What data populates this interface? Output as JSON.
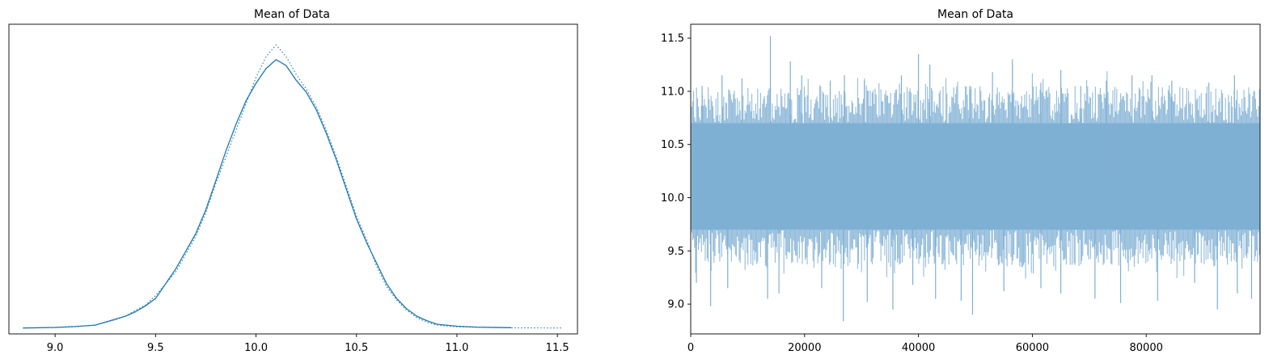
{
  "colors": {
    "line": "#1f77b4",
    "trace_fill": "#7fb0d4",
    "frame": "#000000",
    "background": "#ffffff"
  },
  "chart_data": [
    {
      "type": "line",
      "title": "Mean of Data",
      "xlabel": "",
      "ylabel": "",
      "xlim": [
        8.77,
        11.6
      ],
      "ylim": [
        -0.02,
        1.03
      ],
      "x_ticks": [
        "9.0",
        "9.5",
        "10.0",
        "10.5",
        "11.0",
        "11.5"
      ],
      "x_tick_values": [
        9.0,
        9.5,
        10.0,
        10.5,
        11.0,
        11.5
      ],
      "y_ticks": [],
      "grid": false,
      "legend": "none",
      "series": [
        {
          "style": "solid",
          "x": [
            8.84,
            9.0,
            9.1,
            9.2,
            9.3,
            9.35,
            9.4,
            9.45,
            9.5,
            9.55,
            9.6,
            9.65,
            9.7,
            9.75,
            9.8,
            9.85,
            9.9,
            9.95,
            10.0,
            10.05,
            10.1,
            10.15,
            10.2,
            10.25,
            10.3,
            10.35,
            10.4,
            10.45,
            10.5,
            10.55,
            10.6,
            10.65,
            10.7,
            10.75,
            10.8,
            10.85,
            10.9,
            11.0,
            11.1,
            11.27
          ],
          "y": [
            0.0,
            0.002,
            0.005,
            0.01,
            0.03,
            0.04,
            0.055,
            0.075,
            0.1,
            0.15,
            0.2,
            0.26,
            0.32,
            0.4,
            0.5,
            0.6,
            0.69,
            0.77,
            0.83,
            0.88,
            0.91,
            0.89,
            0.84,
            0.8,
            0.74,
            0.66,
            0.57,
            0.47,
            0.37,
            0.29,
            0.22,
            0.15,
            0.1,
            0.065,
            0.04,
            0.025,
            0.013,
            0.006,
            0.003,
            0.001
          ]
        },
        {
          "style": "dotted",
          "x": [
            8.84,
            9.0,
            9.1,
            9.2,
            9.3,
            9.35,
            9.4,
            9.45,
            9.5,
            9.55,
            9.6,
            9.65,
            9.7,
            9.75,
            9.8,
            9.85,
            9.9,
            9.95,
            10.0,
            10.05,
            10.1,
            10.15,
            10.2,
            10.25,
            10.3,
            10.35,
            10.4,
            10.45,
            10.5,
            10.55,
            10.6,
            10.65,
            10.7,
            10.75,
            10.8,
            10.85,
            10.9,
            11.0,
            11.1,
            11.27,
            11.52
          ],
          "y": [
            0.0,
            0.001,
            0.004,
            0.01,
            0.028,
            0.04,
            0.06,
            0.078,
            0.11,
            0.15,
            0.19,
            0.25,
            0.31,
            0.39,
            0.49,
            0.58,
            0.67,
            0.76,
            0.85,
            0.92,
            0.96,
            0.92,
            0.86,
            0.81,
            0.75,
            0.67,
            0.58,
            0.48,
            0.38,
            0.3,
            0.21,
            0.14,
            0.095,
            0.06,
            0.035,
            0.02,
            0.01,
            0.004,
            0.002,
            0.0005,
            0.0
          ]
        }
      ]
    },
    {
      "type": "line",
      "title": "Mean of Data",
      "xlabel": "",
      "ylabel": "",
      "xlim": [
        0,
        100000
      ],
      "ylim": [
        8.72,
        11.63
      ],
      "x_ticks": [
        "0",
        "20000",
        "40000",
        "60000",
        "80000"
      ],
      "x_tick_values": [
        0,
        20000,
        40000,
        60000,
        80000
      ],
      "y_ticks": [
        "9.0",
        "9.5",
        "10.0",
        "10.5",
        "11.0",
        "11.5"
      ],
      "y_tick_values": [
        9.0,
        9.5,
        10.0,
        10.5,
        11.0,
        11.5
      ],
      "grid": false,
      "legend": "none",
      "series": [
        {
          "name": "",
          "style": "solid",
          "band": {
            "x": [
              0,
              100000
            ],
            "y_low": 9.7,
            "y_high": 10.7
          },
          "spikes_high": [
            [
              2000,
              11.05
            ],
            [
              5500,
              11.15
            ],
            [
              9000,
              11.12
            ],
            [
              14000,
              11.52
            ],
            [
              17500,
              11.28
            ],
            [
              19500,
              11.15
            ],
            [
              24500,
              11.1
            ],
            [
              27000,
              11.15
            ],
            [
              30500,
              11.1
            ],
            [
              37000,
              11.15
            ],
            [
              40000,
              11.35
            ],
            [
              42000,
              11.25
            ],
            [
              49000,
              11.05
            ],
            [
              53000,
              11.18
            ],
            [
              56500,
              11.3
            ],
            [
              61500,
              11.08
            ],
            [
              65000,
              11.2
            ],
            [
              68500,
              11.05
            ],
            [
              73000,
              11.1
            ],
            [
              77500,
              11.15
            ],
            [
              81000,
              11.15
            ],
            [
              84500,
              11.1
            ],
            [
              91000,
              11.08
            ],
            [
              95500,
              11.15
            ]
          ],
          "spikes_low": [
            [
              1000,
              9.2
            ],
            [
              3500,
              8.98
            ],
            [
              6500,
              9.15
            ],
            [
              13500,
              9.05
            ],
            [
              15500,
              9.1
            ],
            [
              23000,
              9.15
            ],
            [
              26800,
              8.84
            ],
            [
              31000,
              9.02
            ],
            [
              35500,
              8.95
            ],
            [
              39000,
              9.18
            ],
            [
              43000,
              9.05
            ],
            [
              47500,
              9.03
            ],
            [
              49500,
              8.9
            ],
            [
              55000,
              9.12
            ],
            [
              61500,
              9.15
            ],
            [
              65000,
              9.1
            ],
            [
              71000,
              9.05
            ],
            [
              75500,
              9.01
            ],
            [
              82000,
              9.03
            ],
            [
              88500,
              9.2
            ],
            [
              92500,
              8.95
            ],
            [
              96000,
              9.1
            ],
            [
              98500,
              9.05
            ]
          ]
        }
      ]
    }
  ]
}
